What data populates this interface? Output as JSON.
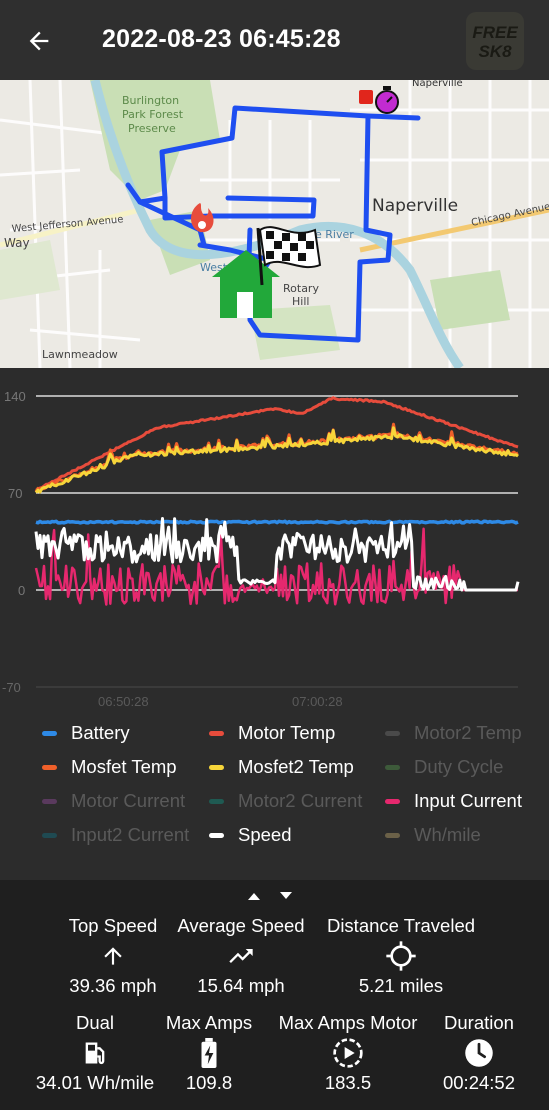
{
  "appbar": {
    "title": "2022-08-23 06:45:28",
    "logo_text_top": "FREE",
    "logo_text_bottom": "SK8"
  },
  "map": {
    "labels": {
      "burlington": "Burlington\nPark Forest\nPreserve",
      "jefferson": "West Jefferson Avenue",
      "way": "Way",
      "naperville": "Naperville",
      "naperville_top": "Naperville",
      "chicago": "Chicago Avenue",
      "river": "ge River",
      "rotary": "Rotary\nHill",
      "lawnmeadow": "Lawnmeadow",
      "west": "West"
    },
    "route_color": "#1e4ef0"
  },
  "chart": {
    "y_ticks": [
      "140",
      "70",
      "0",
      "-70"
    ],
    "x_ticks": [
      "06:50:28",
      "07:00:28"
    ],
    "colors": {
      "battery": "#2e8ae6",
      "motor_temp": "#e74c3c",
      "mosfet_temp": "#f0602a",
      "mosfet2_temp": "#f6d53a",
      "input_current": "#e6286e",
      "speed": "#ffffff"
    }
  },
  "legend": [
    {
      "label": "Battery",
      "color": "#2e8ae6",
      "active": true
    },
    {
      "label": "Motor Temp",
      "color": "#e74c3c",
      "active": true
    },
    {
      "label": "Motor2 Temp",
      "color": "#4a4a4a",
      "active": false
    },
    {
      "label": "Mosfet Temp",
      "color": "#f0602a",
      "active": true
    },
    {
      "label": "Mosfet2 Temp",
      "color": "#f6d53a",
      "active": true
    },
    {
      "label": "Duty Cycle",
      "color": "#3d5a3a",
      "active": false
    },
    {
      "label": "Motor Current",
      "color": "#5a3a5e",
      "active": false
    },
    {
      "label": "Motor2 Current",
      "color": "#1f5a52",
      "active": false
    },
    {
      "label": "Input Current",
      "color": "#e6286e",
      "active": true
    },
    {
      "label": "Input2 Current",
      "color": "#1f4a52",
      "active": false
    },
    {
      "label": "Speed",
      "color": "#ffffff",
      "active": true
    },
    {
      "label": "Wh/mile",
      "color": "#6b6148",
      "active": false
    }
  ],
  "stats": {
    "top_speed": {
      "label": "Top Speed",
      "value": "39.36 mph"
    },
    "average_speed": {
      "label": "Average Speed",
      "value": "15.64 mph"
    },
    "distance": {
      "label": "Distance Traveled",
      "value": "5.21 miles"
    },
    "efficiency": {
      "label": "Dual",
      "value": "34.01 Wh/mile"
    },
    "max_amps": {
      "label": "Max Amps",
      "value": "109.8"
    },
    "max_amps_motor": {
      "label": "Max Amps Motor",
      "value": "183.5"
    },
    "duration": {
      "label": "Duration",
      "value": "00:24:52"
    }
  }
}
